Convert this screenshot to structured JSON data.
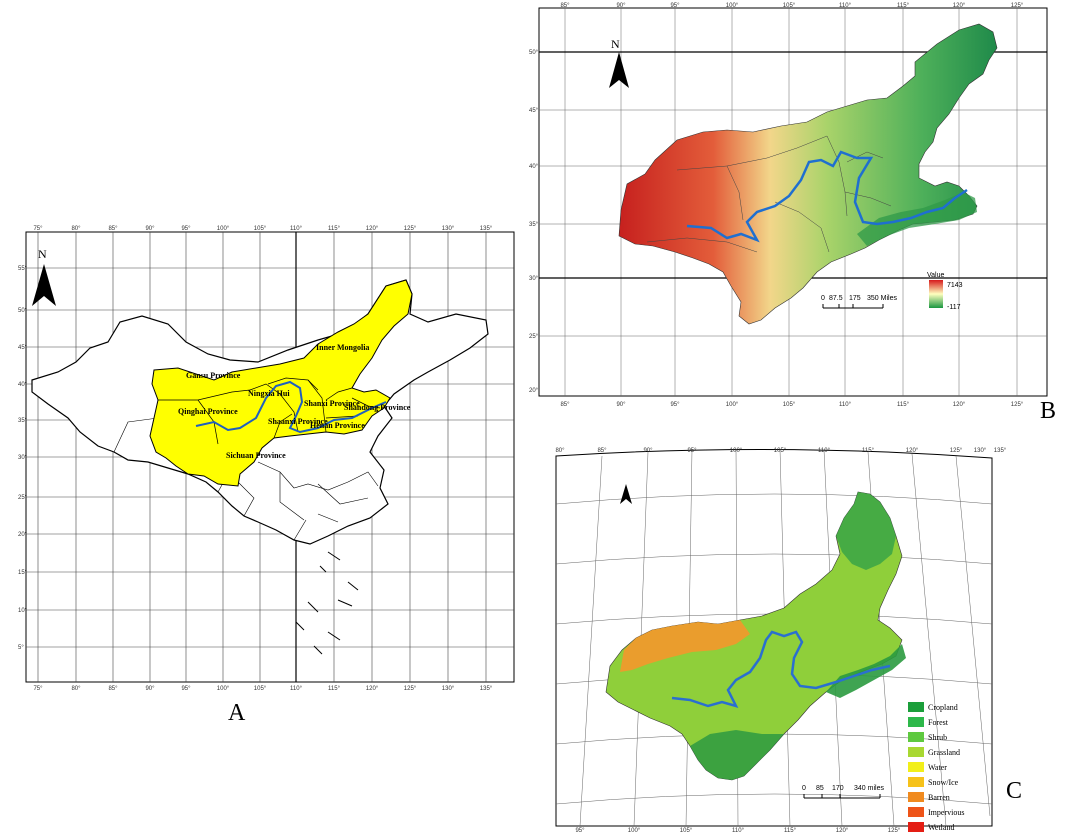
{
  "panel_a": {
    "label": "A",
    "north": "N",
    "lon_ticks": [
      "75°",
      "80°",
      "85°",
      "90°",
      "95°",
      "100°",
      "105°",
      "110°",
      "115°",
      "120°",
      "125°",
      "130°",
      "135°"
    ],
    "lat_ticks_left": [
      "55°",
      "50°",
      "45°",
      "40°",
      "35°",
      "30°",
      "25°",
      "20°",
      "15°",
      "10°",
      "5°"
    ],
    "provinces": [
      "Inner Mongolia",
      "Gansu Province",
      "Ningxia Hui",
      "Shanxi Province",
      "Shandong Province",
      "Qinghai Province",
      "Shaanxi Province",
      "Henan Province",
      "Sichuan Province"
    ],
    "highlight_color": "#ffff00"
  },
  "panel_b": {
    "label": "B",
    "north": "N",
    "lon_ticks": [
      "85°",
      "90°",
      "95°",
      "100°",
      "105°",
      "110°",
      "115°",
      "120°",
      "125°"
    ],
    "lat_ticks": [
      "50°",
      "45°",
      "40°",
      "35°",
      "30°",
      "25°",
      "20°"
    ],
    "legend_title": "Value",
    "legend_high": "7143",
    "legend_low": "-117",
    "scale_labels": [
      "0",
      "87.5",
      "175",
      "350 Miles"
    ]
  },
  "panel_c": {
    "label": "C",
    "lon_ticks": [
      "80°",
      "85°",
      "90°",
      "95°",
      "100°",
      "105°",
      "110°",
      "115°",
      "120°",
      "125°",
      "130°",
      "135°"
    ],
    "bottom_ticks": [
      "95°",
      "100°",
      "105°",
      "110°",
      "115°",
      "120°",
      "125°"
    ],
    "scale_labels": [
      "0",
      "85",
      "170",
      "340 miles"
    ],
    "legend": [
      {
        "label": "Cropland",
        "color": "#1b9e3a"
      },
      {
        "label": "Forest",
        "color": "#2db84a"
      },
      {
        "label": "Shrub",
        "color": "#5ec93f"
      },
      {
        "label": "Grassland",
        "color": "#a8d832"
      },
      {
        "label": "Water",
        "color": "#f2ef1a"
      },
      {
        "label": "Snow/Ice",
        "color": "#f6c21a"
      },
      {
        "label": "Barren",
        "color": "#f08a1e"
      },
      {
        "label": "Impervious",
        "color": "#ee5418"
      },
      {
        "label": "Wetland",
        "color": "#e41e14"
      }
    ]
  }
}
